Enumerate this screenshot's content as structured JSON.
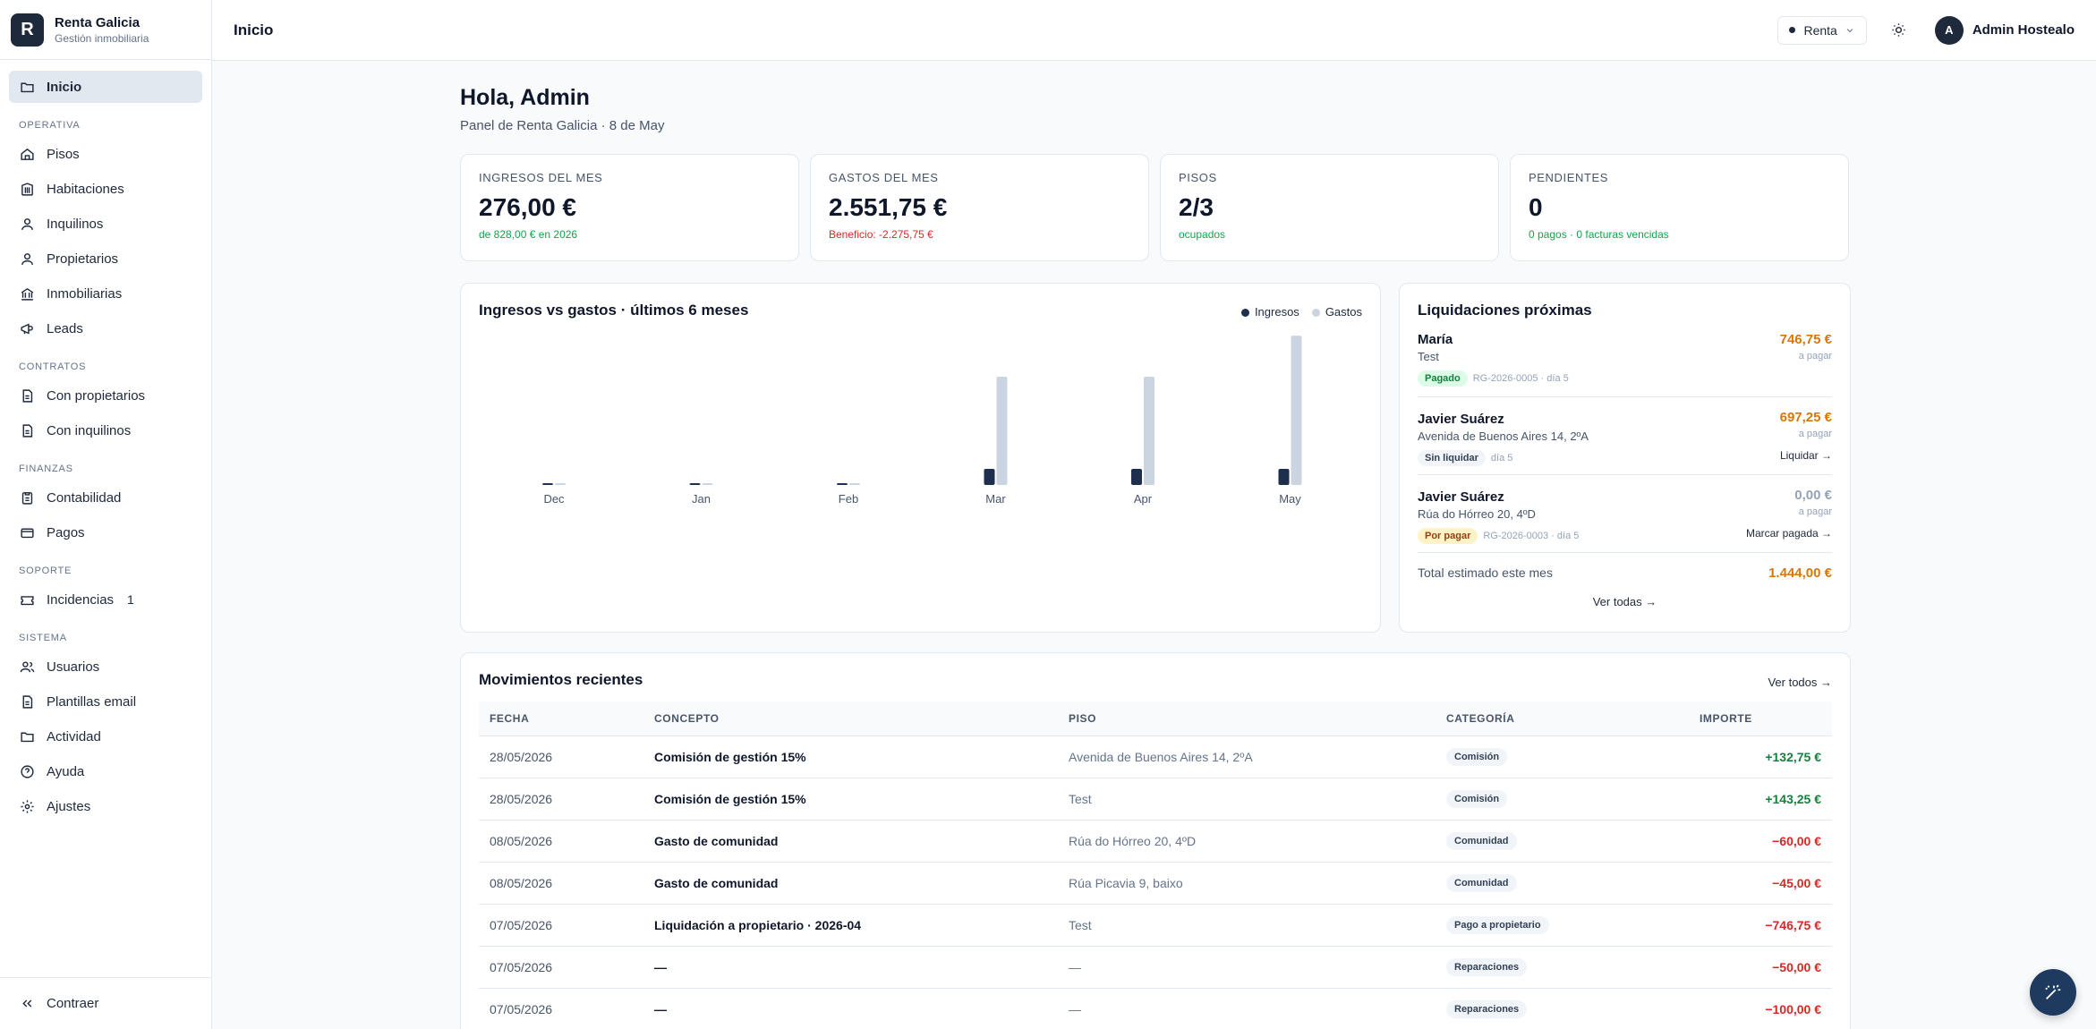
{
  "brand": {
    "logo_letter": "R",
    "name": "Renta Galicia",
    "subtitle": "Gestión inmobiliaria"
  },
  "sidebar": {
    "top_item": {
      "label": "Inicio",
      "icon": "folder-icon"
    },
    "sections": [
      {
        "title": "OPERATIVA",
        "items": [
          {
            "label": "Pisos",
            "icon": "home-icon"
          },
          {
            "label": "Habitaciones",
            "icon": "building-icon"
          },
          {
            "label": "Inquilinos",
            "icon": "user-icon"
          },
          {
            "label": "Propietarios",
            "icon": "user-icon"
          },
          {
            "label": "Inmobiliarias",
            "icon": "bank-icon"
          },
          {
            "label": "Leads",
            "icon": "megaphone-icon"
          }
        ]
      },
      {
        "title": "CONTRATOS",
        "items": [
          {
            "label": "Con propietarios",
            "icon": "document-icon"
          },
          {
            "label": "Con inquilinos",
            "icon": "document-icon"
          }
        ]
      },
      {
        "title": "FINANZAS",
        "items": [
          {
            "label": "Contabilidad",
            "icon": "clipboard-icon"
          },
          {
            "label": "Pagos",
            "icon": "card-icon"
          }
        ]
      },
      {
        "title": "SOPORTE",
        "items": [
          {
            "label": "Incidencias",
            "icon": "ticket-icon",
            "badge": "1"
          }
        ]
      },
      {
        "title": "SISTEMA",
        "items": [
          {
            "label": "Usuarios",
            "icon": "users-icon"
          },
          {
            "label": "Plantillas email",
            "icon": "document-icon"
          },
          {
            "label": "Actividad",
            "icon": "folder-icon"
          },
          {
            "label": "Ayuda",
            "icon": "help-icon"
          },
          {
            "label": "Ajustes",
            "icon": "gear-icon"
          }
        ]
      }
    ],
    "collapse_label": "Contraer"
  },
  "header": {
    "title": "Inicio",
    "mode": "Renta",
    "user_initial": "A",
    "user_name": "Admin Hostealo"
  },
  "greeting": {
    "title": "Hola, Admin",
    "subtitle": "Panel de Renta Galicia · 8 de May"
  },
  "kpis": [
    {
      "label": "INGRESOS DEL MES",
      "value": "276,00 €",
      "note": "de 828,00 € en 2026",
      "tone": "green"
    },
    {
      "label": "GASTOS DEL MES",
      "value": "2.551,75 €",
      "note": "Beneficio: -2.275,75 €",
      "tone": "red"
    },
    {
      "label": "PISOS",
      "value": "2/3",
      "note": "ocupados",
      "tone": "green"
    },
    {
      "label": "PENDIENTES",
      "value": "0",
      "note": "0 pagos · 0 facturas vencidas",
      "tone": "green"
    }
  ],
  "chart_title": "Ingresos vs gastos · últimos 6 meses",
  "chart_data": {
    "type": "bar",
    "categories": [
      "Dec",
      "Jan",
      "Feb",
      "Mar",
      "Apr",
      "May"
    ],
    "series": [
      {
        "name": "Ingresos",
        "color": "#1e2f4d",
        "values": [
          0,
          0,
          0,
          276,
          276,
          276
        ]
      },
      {
        "name": "Gastos",
        "color": "#cbd5e1",
        "values": [
          0,
          0,
          0,
          1850,
          1850,
          2551.75
        ]
      }
    ],
    "ylim": [
      0,
      2600
    ],
    "grid": false,
    "legend": "top-right"
  },
  "liquidaciones": {
    "title": "Liquidaciones próximas",
    "items": [
      {
        "name": "María",
        "addr": "Test",
        "amount": "746,75 €",
        "amount_sub": "a pagar",
        "amount_tone": "orange",
        "status": "Pagado",
        "status_kind": "paid",
        "meta": "RG-2026-0005 · día 5",
        "action": ""
      },
      {
        "name": "Javier Suárez",
        "addr": "Avenida de Buenos Aires 14, 2ºA",
        "amount": "697,25 €",
        "amount_sub": "a pagar",
        "amount_tone": "orange",
        "status": "Sin liquidar",
        "status_kind": "unset",
        "meta": "día 5",
        "action": "Liquidar →"
      },
      {
        "name": "Javier Suárez",
        "addr": "Rúa do Hórreo 20, 4ºD",
        "amount": "0,00 €",
        "amount_sub": "a pagar",
        "amount_tone": "gray",
        "status": "Por pagar",
        "status_kind": "pending",
        "meta": "RG-2026-0003 · día 5",
        "action": "Marcar pagada →"
      }
    ],
    "total_label": "Total estimado este mes",
    "total_value": "1.444,00 €",
    "see_all": "Ver todas →"
  },
  "movimientos": {
    "title": "Movimientos recientes",
    "see_all": "Ver todos →",
    "columns": [
      "FECHA",
      "CONCEPTO",
      "PISO",
      "CATEGORÍA",
      "IMPORTE"
    ],
    "rows": [
      {
        "fecha": "28/05/2026",
        "concepto": "Comisión de gestión 15%",
        "piso": "Avenida de Buenos Aires 14, 2ºA",
        "categoria": "Comisión",
        "importe": "+132,75 €",
        "tone": "pos"
      },
      {
        "fecha": "28/05/2026",
        "concepto": "Comisión de gestión 15%",
        "piso": "Test",
        "categoria": "Comisión",
        "importe": "+143,25 €",
        "tone": "pos"
      },
      {
        "fecha": "08/05/2026",
        "concepto": "Gasto de comunidad",
        "piso": "Rúa do Hórreo 20, 4ºD",
        "categoria": "Comunidad",
        "importe": "−60,00 €",
        "tone": "neg"
      },
      {
        "fecha": "08/05/2026",
        "concepto": "Gasto de comunidad",
        "piso": "Rúa Picavia 9, baixo",
        "categoria": "Comunidad",
        "importe": "−45,00 €",
        "tone": "neg"
      },
      {
        "fecha": "07/05/2026",
        "concepto": "Liquidación a propietario · 2026-04",
        "piso": "Test",
        "categoria": "Pago a propietario",
        "importe": "−746,75 €",
        "tone": "neg"
      },
      {
        "fecha": "07/05/2026",
        "concepto": "—",
        "piso": "—",
        "categoria": "Reparaciones",
        "importe": "−50,00 €",
        "tone": "neg"
      },
      {
        "fecha": "07/05/2026",
        "concepto": "—",
        "piso": "—",
        "categoria": "Reparaciones",
        "importe": "−100,00 €",
        "tone": "neg"
      }
    ]
  },
  "fab_icon": "magic-wand-icon"
}
